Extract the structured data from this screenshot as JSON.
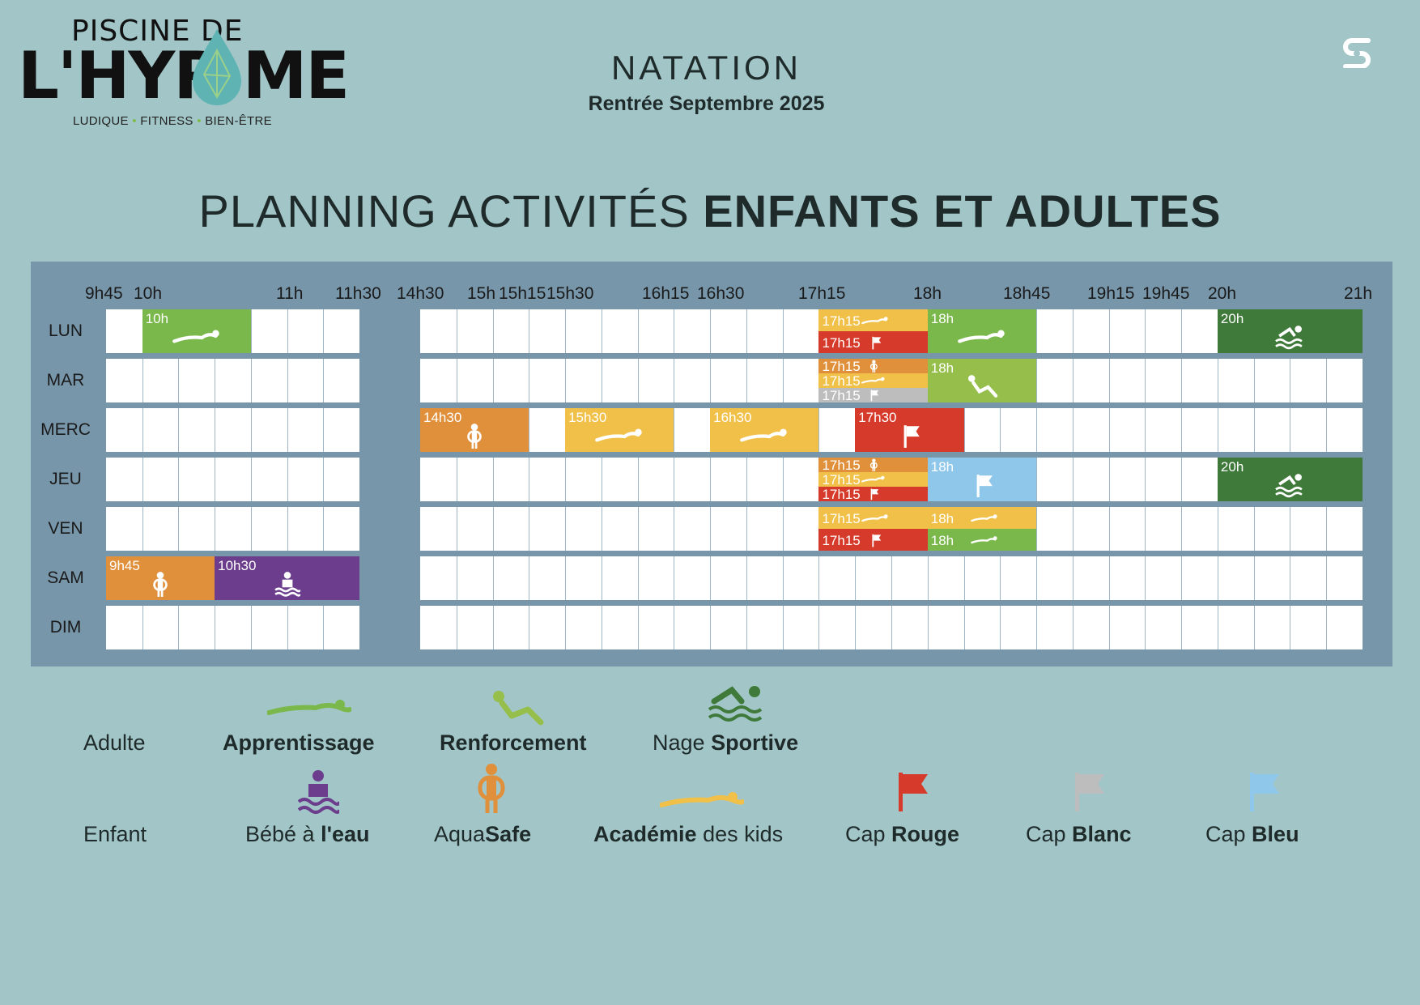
{
  "logo": {
    "line1": "PISCINE   DE",
    "line2": "L'HYR  ME",
    "tag1": "LUDIQUE",
    "tag2": "FITNESS",
    "tag3": "BIEN-ÊTRE"
  },
  "header": {
    "title": "NATATION",
    "subtitle": "Rentrée Septembre 2025"
  },
  "page_title": {
    "light": "PLANNING ACTIVITÉS ",
    "bold": "ENFANTS ET ADULTES"
  },
  "time_headers": [
    "9h45",
    "10h",
    "11h",
    "11h30",
    "14h30",
    "15h",
    "15h15",
    "15h30",
    "16h15",
    "16h30",
    "17h15",
    "18h",
    "18h45",
    "19h15",
    "19h45",
    "20h",
    "21h"
  ],
  "days": [
    "LUN",
    "MAR",
    "MERC",
    "JEU",
    "VEN",
    "SAM",
    "DIM"
  ],
  "events": {
    "lun_10h": "10h",
    "lun_1715a": "17h15",
    "lun_1715b": "17h15",
    "lun_18h": "18h",
    "lun_20h": "20h",
    "mar_1715a": "17h15",
    "mar_1715b": "17h15",
    "mar_1715c": "17h15",
    "mar_18h": "18h",
    "merc_1430": "14h30",
    "merc_1530": "15h30",
    "merc_1630": "16h30",
    "merc_1730": "17h30",
    "jeu_1715a": "17h15",
    "jeu_1715b": "17h15",
    "jeu_1715c": "17h15",
    "jeu_18h": "18h",
    "jeu_20h": "20h",
    "ven_1715a": "17h15",
    "ven_1715b": "17h15",
    "ven_18ha": "18h",
    "ven_18hb": "18h",
    "sam_945": "9h45",
    "sam_1030": "10h30"
  },
  "legend": {
    "adulte": "Adulte",
    "enfant": "Enfant",
    "apprentissage": "Apprentissage",
    "renforcement": "Renforcement",
    "nage_light": "Nage ",
    "nage_bold": "Sportive",
    "bebe_light": "Bébé à ",
    "bebe_bold": "l'eau",
    "aqua_light": "Aqua",
    "aqua_bold": "Safe",
    "academie_bold": "Académie",
    "academie_light": " des kids",
    "cap": "Cap ",
    "rouge": "Rouge",
    "blanc": "Blanc",
    "bleu": "Bleu"
  },
  "icons": {
    "app_logo": "s-logo-icon",
    "apprentissage": "swimmer-glide-icon",
    "renforcement": "situp-icon",
    "sportive": "swimmer-waves-icon",
    "bebe": "baby-water-icon",
    "aquasafe": "child-float-icon",
    "academie": "swimmer-glide-icon",
    "cap": "flag-icon"
  },
  "colors": {
    "background": "#a2c6c8",
    "panel": "#7796aa",
    "apprentissage": "#7ab84b",
    "renforcement": "#95bf4a",
    "sportive": "#3f7a3a",
    "bebe": "#6b3d8c",
    "aquasafe": "#e0903a",
    "academie": "#f0c048",
    "cap_rouge": "#d63a2a",
    "cap_blanc": "#bdbdbd",
    "cap_bleu": "#8fc7ea"
  }
}
